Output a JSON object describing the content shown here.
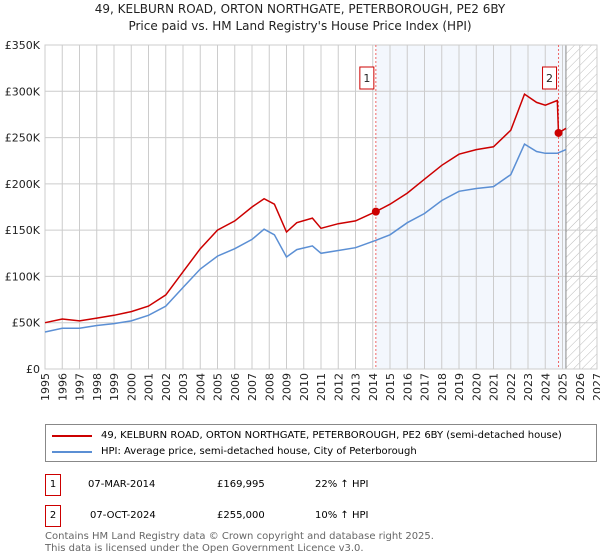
{
  "chart_data": {
    "type": "line",
    "title": "49, KELBURN ROAD, ORTON NORTHGATE, PETERBOROUGH, PE2 6BY",
    "subtitle": "Price paid vs. HM Land Registry's House Price Index (HPI)",
    "xlim": [
      1995,
      2027
    ],
    "ylim": [
      0,
      350000
    ],
    "x_ticks": [
      "1995",
      "1996",
      "1997",
      "1998",
      "1999",
      "2000",
      "2001",
      "2002",
      "2003",
      "2004",
      "2005",
      "2006",
      "2007",
      "2008",
      "2009",
      "2010",
      "2011",
      "2012",
      "2013",
      "2014",
      "2015",
      "2016",
      "2017",
      "2018",
      "2019",
      "2020",
      "2021",
      "2022",
      "2023",
      "2024",
      "2025",
      "2026",
      "2027"
    ],
    "y_ticks": [
      {
        "v": 0,
        "label": "£0"
      },
      {
        "v": 50000,
        "label": "£50K"
      },
      {
        "v": 100000,
        "label": "£100K"
      },
      {
        "v": 150000,
        "label": "£150K"
      },
      {
        "v": 200000,
        "label": "£200K"
      },
      {
        "v": 250000,
        "label": "£250K"
      },
      {
        "v": 300000,
        "label": "£300K"
      },
      {
        "v": 350000,
        "label": "£350K"
      }
    ],
    "grid": true,
    "shaded_range": [
      2014.18,
      2025.2
    ],
    "forecast_hatch_from": 2025.2,
    "series": [
      {
        "name": "49, KELBURN ROAD, ORTON NORTHGATE, PETERBOROUGH, PE2 6BY (semi-detached house)",
        "color": "#cc0000",
        "x": [
          1995,
          1996,
          1997,
          1998,
          1999,
          2000,
          2001,
          2002,
          2003,
          2004,
          2005,
          2006,
          2007,
          2007.7,
          2008.3,
          2009,
          2009.6,
          2010.5,
          2011,
          2012,
          2013,
          2014.18,
          2015,
          2016,
          2017,
          2018,
          2019,
          2020,
          2021,
          2022,
          2022.8,
          2023.5,
          2024,
          2024.7,
          2024.77,
          2025.2
        ],
        "y": [
          50000,
          54000,
          52000,
          55000,
          58000,
          62000,
          68000,
          80000,
          105000,
          130000,
          150000,
          160000,
          175000,
          184000,
          178000,
          148000,
          158000,
          163000,
          152000,
          157000,
          160000,
          169995,
          178000,
          190000,
          205000,
          220000,
          232000,
          237000,
          240000,
          258000,
          297000,
          288000,
          285000,
          290000,
          255000,
          260000
        ]
      },
      {
        "name": "HPI: Average price, semi-detached house, City of Peterborough",
        "color": "#5b8fd4",
        "x": [
          1995,
          1996,
          1997,
          1998,
          1999,
          2000,
          2001,
          2002,
          2003,
          2004,
          2005,
          2006,
          2007,
          2007.7,
          2008.3,
          2009,
          2009.6,
          2010.5,
          2011,
          2012,
          2013,
          2014.18,
          2015,
          2016,
          2017,
          2018,
          2019,
          2020,
          2021,
          2022,
          2022.8,
          2023.5,
          2024,
          2024.7,
          2025.2
        ],
        "y": [
          40000,
          44000,
          44000,
          47000,
          49000,
          52000,
          58000,
          68000,
          88000,
          108000,
          122000,
          130000,
          140000,
          151000,
          145000,
          121000,
          129000,
          133000,
          125000,
          128000,
          131000,
          139000,
          145000,
          158000,
          168000,
          182000,
          192000,
          195000,
          197000,
          210000,
          243000,
          235000,
          233000,
          233000,
          237000
        ]
      }
    ],
    "annotations": [
      {
        "label": "1",
        "x": 2014.18,
        "y": 169995
      },
      {
        "label": "2",
        "x": 2024.77,
        "y": 255000
      }
    ]
  },
  "sales": [
    {
      "num": "1",
      "date": "07-MAR-2014",
      "price": "£169,995",
      "hpi": "22% ↑ HPI"
    },
    {
      "num": "2",
      "date": "07-OCT-2024",
      "price": "£255,000",
      "hpi": "10% ↑ HPI"
    }
  ],
  "footer": {
    "line1": "Contains HM Land Registry data © Crown copyright and database right 2025.",
    "line2": "This data is licensed under the Open Government Licence v3.0."
  }
}
